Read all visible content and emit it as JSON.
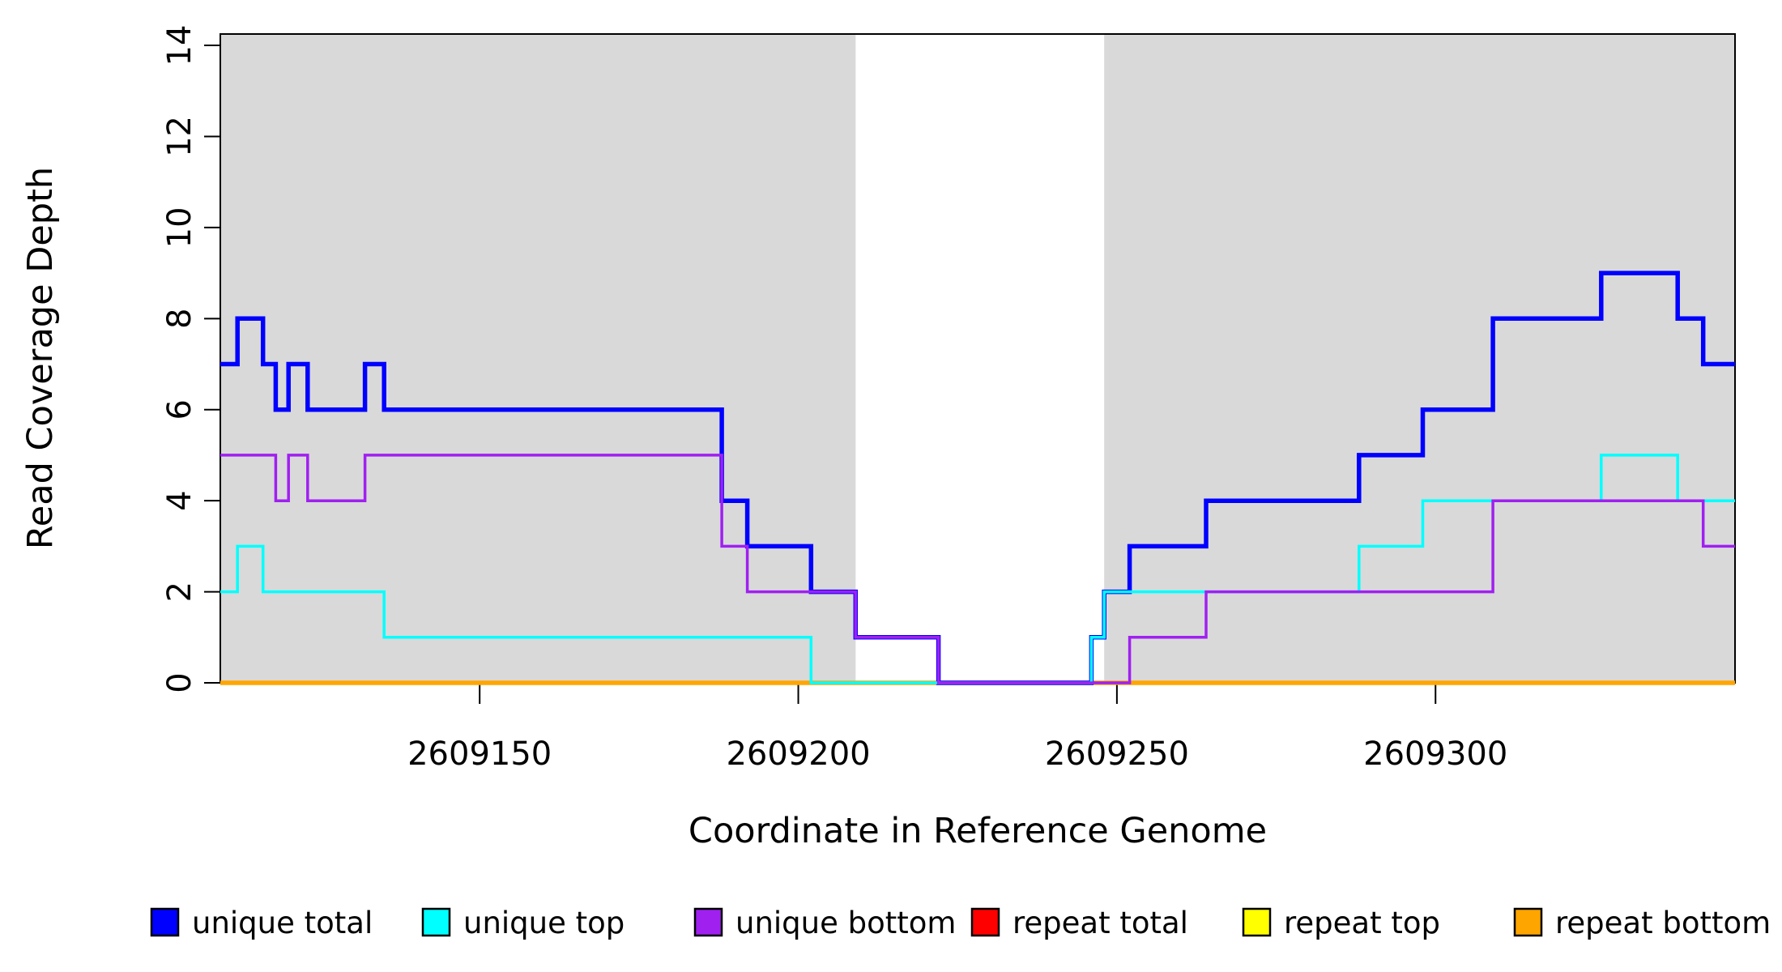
{
  "chart_data": {
    "type": "line",
    "step": true,
    "xlabel": "Coordinate in Reference Genome",
    "ylabel": "Read Coverage Depth",
    "xlim": [
      2609109.3,
      2609347.0
    ],
    "ylim": [
      0,
      14.25
    ],
    "x_ticks": [
      2609150,
      2609200,
      2609250,
      2609300
    ],
    "x_tick_labels": [
      "2609150",
      "2609200",
      "2609250",
      "2609300"
    ],
    "y_ticks": [
      0,
      2,
      4,
      6,
      8,
      10,
      12,
      14
    ],
    "y_tick_labels": [
      "0",
      "2",
      "4",
      "6",
      "8",
      "10",
      "12",
      "14"
    ],
    "grid": false,
    "background_color": "#ffffff",
    "shading_color": "#d9d9d9",
    "shaded_regions": [
      {
        "from": 2609109.3,
        "to": 2609209
      },
      {
        "from": 2609248,
        "to": 2609347
      }
    ],
    "series": [
      {
        "name": "repeat total",
        "color": "#ff0000",
        "line_width": 3.5,
        "segments": [
          {
            "start": 2609109,
            "value": 0
          }
        ]
      },
      {
        "name": "repeat top",
        "color": "#ffff00",
        "line_width": 3.5,
        "segments": [
          {
            "start": 2609109,
            "value": 0
          }
        ]
      },
      {
        "name": "repeat bottom",
        "color": "#ffa500",
        "line_width": 5.5,
        "segments": [
          {
            "start": 2609109,
            "value": 0
          }
        ]
      },
      {
        "name": "unique total",
        "color": "#0000ff",
        "line_width": 5.5,
        "segments": [
          {
            "start": 2609109,
            "value": 7
          },
          {
            "start": 2609112,
            "value": 8
          },
          {
            "start": 2609116,
            "value": 7
          },
          {
            "start": 2609118,
            "value": 6
          },
          {
            "start": 2609120,
            "value": 7
          },
          {
            "start": 2609123,
            "value": 6
          },
          {
            "start": 2609132,
            "value": 7
          },
          {
            "start": 2609135,
            "value": 6
          },
          {
            "start": 2609188,
            "value": 4
          },
          {
            "start": 2609192,
            "value": 3
          },
          {
            "start": 2609202,
            "value": 2
          },
          {
            "start": 2609209,
            "value": 1
          },
          {
            "start": 2609222,
            "value": 0
          },
          {
            "start": 2609246,
            "value": 1
          },
          {
            "start": 2609248,
            "value": 2
          },
          {
            "start": 2609252,
            "value": 3
          },
          {
            "start": 2609264,
            "value": 4
          },
          {
            "start": 2609288,
            "value": 5
          },
          {
            "start": 2609298,
            "value": 6
          },
          {
            "start": 2609309,
            "value": 8
          },
          {
            "start": 2609326,
            "value": 9
          },
          {
            "start": 2609338,
            "value": 8
          },
          {
            "start": 2609342,
            "value": 7
          }
        ]
      },
      {
        "name": "unique top",
        "color": "#00ffff",
        "line_width": 3.5,
        "segments": [
          {
            "start": 2609109,
            "value": 2
          },
          {
            "start": 2609112,
            "value": 3
          },
          {
            "start": 2609116,
            "value": 2
          },
          {
            "start": 2609135,
            "value": 1
          },
          {
            "start": 2609202,
            "value": 0
          },
          {
            "start": 2609246,
            "value": 1
          },
          {
            "start": 2609248,
            "value": 2
          },
          {
            "start": 2609288,
            "value": 3
          },
          {
            "start": 2609298,
            "value": 4
          },
          {
            "start": 2609326,
            "value": 5
          },
          {
            "start": 2609338,
            "value": 4
          }
        ]
      },
      {
        "name": "unique bottom",
        "color": "#a020f0",
        "line_width": 3.5,
        "segments": [
          {
            "start": 2609109,
            "value": 5
          },
          {
            "start": 2609118,
            "value": 4
          },
          {
            "start": 2609120,
            "value": 5
          },
          {
            "start": 2609123,
            "value": 4
          },
          {
            "start": 2609132,
            "value": 5
          },
          {
            "start": 2609188,
            "value": 3
          },
          {
            "start": 2609192,
            "value": 2
          },
          {
            "start": 2609209,
            "value": 1
          },
          {
            "start": 2609222,
            "value": 0
          },
          {
            "start": 2609252,
            "value": 1
          },
          {
            "start": 2609264,
            "value": 2
          },
          {
            "start": 2609309,
            "value": 4
          },
          {
            "start": 2609342,
            "value": 3
          }
        ]
      }
    ],
    "legend": {
      "position": "bottom",
      "items": [
        {
          "label": "unique total",
          "color": "#0000ff"
        },
        {
          "label": "unique top",
          "color": "#00ffff"
        },
        {
          "label": "unique bottom",
          "color": "#a020f0"
        },
        {
          "label": "repeat total",
          "color": "#ff0000"
        },
        {
          "label": "repeat top",
          "color": "#ffff00"
        },
        {
          "label": "repeat bottom",
          "color": "#ffa500"
        }
      ]
    }
  }
}
